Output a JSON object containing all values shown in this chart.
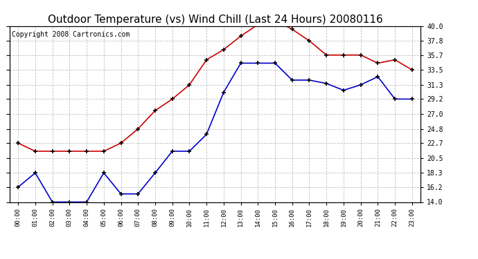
{
  "title": "Outdoor Temperature (vs) Wind Chill (Last 24 Hours) 20080116",
  "copyright": "Copyright 2008 Cartronics.com",
  "x_labels": [
    "00:00",
    "01:00",
    "02:00",
    "03:00",
    "04:00",
    "05:00",
    "06:00",
    "07:00",
    "08:00",
    "09:00",
    "10:00",
    "11:00",
    "12:00",
    "13:00",
    "14:00",
    "15:00",
    "16:00",
    "17:00",
    "18:00",
    "19:00",
    "20:00",
    "21:00",
    "22:00",
    "23:00"
  ],
  "outdoor_temp": [
    22.7,
    21.5,
    21.5,
    21.5,
    21.5,
    21.5,
    22.7,
    24.8,
    27.5,
    29.2,
    31.3,
    35.0,
    36.5,
    38.5,
    40.2,
    40.8,
    39.5,
    37.8,
    35.7,
    35.7,
    35.7,
    34.5,
    35.0,
    33.5
  ],
  "wind_chill": [
    16.2,
    18.3,
    14.0,
    14.0,
    14.0,
    18.3,
    15.2,
    15.2,
    18.3,
    21.5,
    21.5,
    24.0,
    30.2,
    34.5,
    34.5,
    34.5,
    32.0,
    32.0,
    31.5,
    30.5,
    31.3,
    32.5,
    29.2,
    29.2
  ],
  "ylim": [
    14.0,
    40.0
  ],
  "yticks": [
    14.0,
    16.2,
    18.3,
    20.5,
    22.7,
    24.8,
    27.0,
    29.2,
    31.3,
    33.5,
    35.7,
    37.8,
    40.0
  ],
  "red_color": "#cc0000",
  "blue_color": "#0000cc",
  "bg_color": "#ffffff",
  "plot_bg_color": "#ffffff",
  "grid_color": "#c0c0c0",
  "title_fontsize": 11,
  "copyright_fontsize": 7
}
